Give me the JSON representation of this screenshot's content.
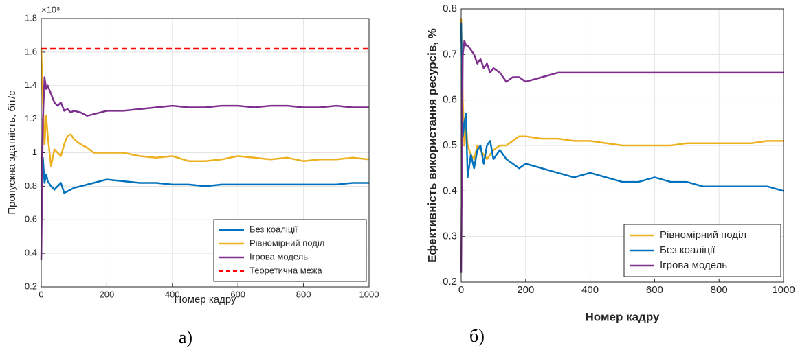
{
  "chart_data": [
    {
      "type": "line",
      "x_label": "Номер кадру",
      "y_label": "Пропускна здатність, біт/с",
      "y_scale_label": "×10⁸",
      "caption": "а)",
      "x": [
        0,
        5,
        10,
        15,
        20,
        30,
        40,
        50,
        60,
        70,
        80,
        90,
        100,
        120,
        140,
        160,
        180,
        200,
        250,
        300,
        350,
        400,
        450,
        500,
        550,
        600,
        650,
        700,
        750,
        800,
        850,
        900,
        950,
        1000
      ],
      "series": [
        {
          "name": "Без коаліції",
          "color": "#0072bd",
          "dash": false,
          "values": [
            0.8,
            0.97,
            0.82,
            0.87,
            0.83,
            0.8,
            0.78,
            0.8,
            0.82,
            0.76,
            0.77,
            0.78,
            0.79,
            0.8,
            0.81,
            0.82,
            0.83,
            0.84,
            0.83,
            0.82,
            0.82,
            0.81,
            0.81,
            0.8,
            0.81,
            0.81,
            0.81,
            0.81,
            0.81,
            0.81,
            0.81,
            0.81,
            0.82,
            0.82
          ]
        },
        {
          "name": "Рівномірний поділ",
          "color": "#edb120",
          "dash": false,
          "values": [
            1.62,
            1.3,
            1.05,
            1.22,
            1.1,
            0.92,
            1.02,
            1.0,
            0.98,
            1.05,
            1.1,
            1.11,
            1.08,
            1.05,
            1.03,
            1.0,
            1.0,
            1.0,
            1.0,
            0.98,
            0.97,
            0.98,
            0.95,
            0.95,
            0.96,
            0.98,
            0.97,
            0.96,
            0.97,
            0.95,
            0.96,
            0.96,
            0.97,
            0.96
          ]
        },
        {
          "name": "Ігрова модель",
          "color": "#7e2f8e",
          "dash": false,
          "values": [
            0.36,
            1.2,
            1.45,
            1.38,
            1.4,
            1.35,
            1.3,
            1.28,
            1.3,
            1.25,
            1.26,
            1.24,
            1.25,
            1.24,
            1.22,
            1.23,
            1.24,
            1.25,
            1.25,
            1.26,
            1.27,
            1.28,
            1.27,
            1.27,
            1.28,
            1.28,
            1.27,
            1.28,
            1.28,
            1.27,
            1.27,
            1.28,
            1.27,
            1.27
          ]
        },
        {
          "name": "Теоретична межа",
          "color": "#ff0000",
          "dash": true,
          "values": [
            1.62,
            1.62,
            1.62,
            1.62,
            1.62,
            1.62,
            1.62,
            1.62,
            1.62,
            1.62,
            1.62,
            1.62,
            1.62,
            1.62,
            1.62,
            1.62,
            1.62,
            1.62,
            1.62,
            1.62,
            1.62,
            1.62,
            1.62,
            1.62,
            1.62,
            1.62,
            1.62,
            1.62,
            1.62,
            1.62,
            1.62,
            1.62,
            1.62,
            1.62
          ]
        }
      ],
      "xlim": [
        0,
        1000
      ],
      "xticks": [
        0,
        200,
        400,
        600,
        800,
        1000
      ],
      "ylim": [
        0.2,
        1.8
      ],
      "yticks": [
        0.2,
        0.4,
        0.6,
        0.8,
        1,
        1.2,
        1.4,
        1.6,
        1.8
      ],
      "grid": true,
      "legend": "lower right"
    },
    {
      "type": "line",
      "x_label": "Номер кадру",
      "y_label": "Ефективність використання ресурсів, %",
      "caption": "б)",
      "x": [
        0,
        5,
        10,
        15,
        20,
        30,
        40,
        50,
        60,
        70,
        80,
        90,
        100,
        120,
        140,
        160,
        180,
        200,
        250,
        300,
        350,
        400,
        450,
        500,
        550,
        600,
        650,
        700,
        750,
        800,
        850,
        900,
        950,
        1000
      ],
      "series": [
        {
          "name": "Рівномірний поділ",
          "color": "#edb120",
          "dash": false,
          "values": [
            0.78,
            0.6,
            0.5,
            0.55,
            0.5,
            0.48,
            0.47,
            0.5,
            0.49,
            0.48,
            0.47,
            0.48,
            0.49,
            0.5,
            0.5,
            0.51,
            0.52,
            0.52,
            0.515,
            0.515,
            0.51,
            0.51,
            0.505,
            0.5,
            0.5,
            0.5,
            0.5,
            0.505,
            0.505,
            0.505,
            0.505,
            0.505,
            0.51,
            0.51
          ]
        },
        {
          "name": "Без коаліції",
          "color": "#0072bd",
          "dash": false,
          "values": [
            0.77,
            0.52,
            0.55,
            0.57,
            0.43,
            0.48,
            0.45,
            0.49,
            0.5,
            0.46,
            0.5,
            0.51,
            0.47,
            0.49,
            0.47,
            0.46,
            0.45,
            0.46,
            0.45,
            0.44,
            0.43,
            0.44,
            0.43,
            0.42,
            0.42,
            0.43,
            0.42,
            0.42,
            0.41,
            0.41,
            0.41,
            0.41,
            0.41,
            0.4
          ]
        },
        {
          "name": "Ігрова модель",
          "color": "#7e2f8e",
          "dash": false,
          "values": [
            0.22,
            0.7,
            0.73,
            0.72,
            0.72,
            0.71,
            0.7,
            0.68,
            0.69,
            0.67,
            0.68,
            0.66,
            0.67,
            0.66,
            0.64,
            0.65,
            0.65,
            0.64,
            0.65,
            0.66,
            0.66,
            0.66,
            0.66,
            0.66,
            0.66,
            0.66,
            0.66,
            0.66,
            0.66,
            0.66,
            0.66,
            0.66,
            0.66,
            0.66
          ]
        }
      ],
      "xlim": [
        0,
        1000
      ],
      "xticks": [
        0,
        200,
        400,
        600,
        800,
        1000
      ],
      "ylim": [
        0.2,
        0.8
      ],
      "yticks": [
        0.2,
        0.3,
        0.4,
        0.5,
        0.6,
        0.7,
        0.8
      ],
      "grid": true,
      "legend": "lower right"
    }
  ]
}
